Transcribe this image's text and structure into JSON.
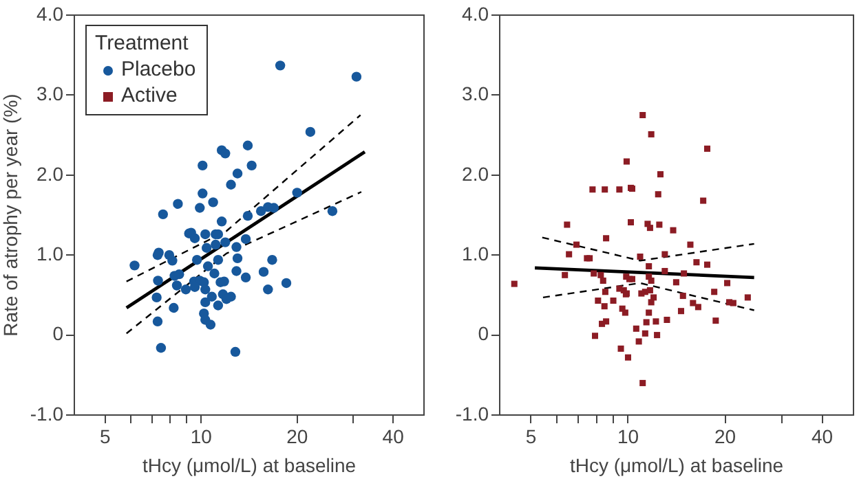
{
  "chart_data": [
    {
      "type": "scatter",
      "xlabel": "tHcy (μmol/L) at baseline",
      "ylabel": "Rate of atrophy per year (%)",
      "legend": "top left",
      "legend_title": "Treatment",
      "log": "x",
      "grid": false,
      "xlim": [
        4,
        50
      ],
      "xticks": [
        5,
        {
          "value": 6,
          "label": null
        },
        {
          "value": 7,
          "label": null
        },
        {
          "value": 8,
          "label": null
        },
        {
          "value": 9,
          "label": null
        },
        10,
        20,
        {
          "value": 30,
          "label": null
        },
        40
      ],
      "ylim": [
        -1,
        4
      ],
      "yticks": [
        {
          "value": -1,
          "label": "-1.0"
        },
        0,
        {
          "value": 1,
          "label": "1.0"
        },
        {
          "value": 2,
          "label": "2.0"
        },
        {
          "value": 3,
          "label": "3.0"
        },
        {
          "value": 4,
          "label": "4.0"
        }
      ],
      "series": [
        {
          "name": "Placebo",
          "marker": "circle",
          "color": "#17589c",
          "x": [
            17.7,
            30.7,
            22.0,
            11.6,
            11.9,
            14.0,
            10.1,
            14.4,
            13.0,
            12.4,
            10.1,
            20.0,
            8.45,
            10.9,
            9.9,
            7.59,
            14.0,
            15.4,
            16.2,
            16.9,
            25.8,
            11.6,
            9.16,
            9.3,
            10.3,
            11.1,
            11.3,
            9.55,
            11.1,
            11.9,
            12.9,
            13.8,
            10.4,
            7.36,
            7.3,
            7.94,
            8.12,
            6.18,
            9.7,
            11.3,
            13.0,
            16.7,
            10.5,
            11.0,
            12.9,
            15.7,
            13.8,
            8.53,
            8.25,
            7.32,
            8.39,
            9.5,
            9.9,
            10.2,
            9.55,
            8.95,
            10.3,
            11.5,
            11.8,
            16.2,
            18.5,
            7.25,
            10.8,
            11.7,
            12.0,
            12.4,
            10.3,
            11.3,
            8.2,
            10.2,
            10.3,
            10.7,
            7.3,
            7.48,
            12.8
          ],
          "values": [
            3.37,
            3.23,
            2.54,
            2.31,
            2.27,
            2.37,
            2.12,
            2.12,
            2.02,
            1.88,
            1.77,
            1.78,
            1.64,
            1.66,
            1.59,
            1.51,
            1.49,
            1.55,
            1.6,
            1.59,
            1.55,
            1.42,
            1.27,
            1.28,
            1.26,
            1.26,
            1.26,
            1.21,
            1.13,
            1.16,
            1.1,
            1.2,
            1.09,
            1.03,
            1.0,
            1.0,
            0.93,
            0.87,
            0.94,
            0.94,
            0.96,
            0.94,
            0.86,
            0.77,
            0.8,
            0.79,
            0.72,
            0.76,
            0.74,
            0.68,
            0.62,
            0.67,
            0.68,
            0.66,
            0.6,
            0.57,
            0.57,
            0.66,
            0.67,
            0.57,
            0.65,
            0.47,
            0.48,
            0.51,
            0.45,
            0.48,
            0.41,
            0.37,
            0.34,
            0.27,
            0.19,
            0.13,
            0.17,
            -0.16,
            -0.21
          ]
        },
        {
          "type": "line",
          "marker": "none",
          "line_style": "solid",
          "color": "#000000",
          "x": [
            5.83,
            32.6
          ],
          "values": [
            0.34,
            2.29
          ]
        },
        {
          "type": "line",
          "marker": "none",
          "line_style": "dashed",
          "color": "#000000",
          "x": [
            5.83,
            12,
            31.6
          ],
          "values": [
            0.67,
            1.3,
            2.75
          ]
        },
        {
          "type": "line",
          "marker": "none",
          "line_style": "dashed",
          "color": "#000000",
          "x": [
            5.83,
            12,
            31.8
          ],
          "values": [
            0.02,
            1.02,
            1.79
          ]
        }
      ]
    },
    {
      "type": "scatter",
      "xlabel": "tHcy (μmol/L) at baseline",
      "log": "x",
      "grid": false,
      "xlim": [
        4,
        50
      ],
      "xticks": [
        5,
        {
          "value": 6,
          "label": null
        },
        {
          "value": 7,
          "label": null
        },
        {
          "value": 8,
          "label": null
        },
        {
          "value": 9,
          "label": null
        },
        10,
        20,
        {
          "value": 30,
          "label": null
        },
        40
      ],
      "ylim": [
        -1,
        4
      ],
      "yticks": [
        {
          "value": -1,
          "label": "-1.0"
        },
        0,
        {
          "value": 1,
          "label": "1.0"
        },
        {
          "value": 2,
          "label": "2.0"
        },
        {
          "value": 3,
          "label": "3.0"
        },
        {
          "value": 4,
          "label": "4.0"
        }
      ],
      "series": [
        {
          "name": "Active",
          "marker": "square",
          "color": "#8c1c24",
          "x": [
            11.1,
            11.8,
            17.6,
            9.9,
            12.6,
            7.76,
            8.47,
            9.4,
            10.2,
            10.3,
            12.4,
            17.1,
            6.47,
            10.2,
            11.5,
            11.7,
            12.5,
            13.8,
            8.55,
            6.92,
            15.6,
            6.56,
            7.46,
            7.6,
            10.9,
            13.0,
            16.3,
            17.6,
            11.6,
            13.0,
            14.9,
            4.44,
            6.37,
            7.83,
            8.23,
            8.37,
            9.87,
            10.1,
            10.3,
            11.6,
            11.8,
            14.1,
            20.3,
            8.5,
            9.4,
            9.7,
            9.9,
            9.85,
            11.0,
            11.3,
            11.7,
            12.0,
            11.8,
            14.8,
            18.5,
            23.5,
            8.07,
            9.0,
            8.45,
            9.6,
            9.8,
            11.6,
            15.9,
            16.5,
            14.6,
            20.6,
            21.2,
            8.55,
            8.3,
            12.2,
            13.2,
            11.4,
            18.7,
            10.6,
            7.9,
            11.3,
            12.3,
            10.8,
            9.5,
            10.0,
            11.1
          ],
          "values": [
            2.75,
            2.51,
            2.33,
            2.17,
            2.01,
            1.82,
            1.82,
            1.82,
            1.84,
            1.83,
            1.76,
            1.68,
            1.38,
            1.41,
            1.39,
            1.34,
            1.38,
            1.31,
            1.21,
            1.13,
            1.13,
            1.01,
            0.96,
            0.96,
            0.98,
            1.01,
            0.91,
            0.88,
            0.86,
            0.8,
            0.77,
            0.64,
            0.75,
            0.77,
            0.75,
            0.68,
            0.73,
            0.7,
            0.7,
            0.73,
            0.68,
            0.66,
            0.65,
            0.54,
            0.58,
            0.56,
            0.52,
            0.51,
            0.52,
            0.54,
            0.56,
            0.47,
            0.41,
            0.49,
            0.54,
            0.47,
            0.43,
            0.43,
            0.36,
            0.33,
            0.28,
            0.28,
            0.4,
            0.35,
            0.3,
            0.41,
            0.4,
            0.17,
            0.14,
            0.17,
            0.19,
            0.16,
            0.18,
            0.08,
            -0.01,
            0.02,
            0.0,
            -0.08,
            -0.17,
            -0.28,
            -0.6
          ]
        },
        {
          "type": "line",
          "marker": "none",
          "line_style": "solid",
          "color": "#000000",
          "x": [
            5.14,
            24.6
          ],
          "values": [
            0.84,
            0.72
          ]
        },
        {
          "type": "line",
          "marker": "none",
          "line_style": "dashed",
          "color": "#000000",
          "x": [
            5.42,
            10.9,
            24.6
          ],
          "values": [
            1.22,
            0.93,
            1.14
          ]
        },
        {
          "type": "line",
          "marker": "none",
          "line_style": "dashed",
          "color": "#000000",
          "x": [
            5.45,
            10.9,
            24.6
          ],
          "values": [
            0.47,
            0.65,
            0.31
          ]
        }
      ]
    }
  ]
}
